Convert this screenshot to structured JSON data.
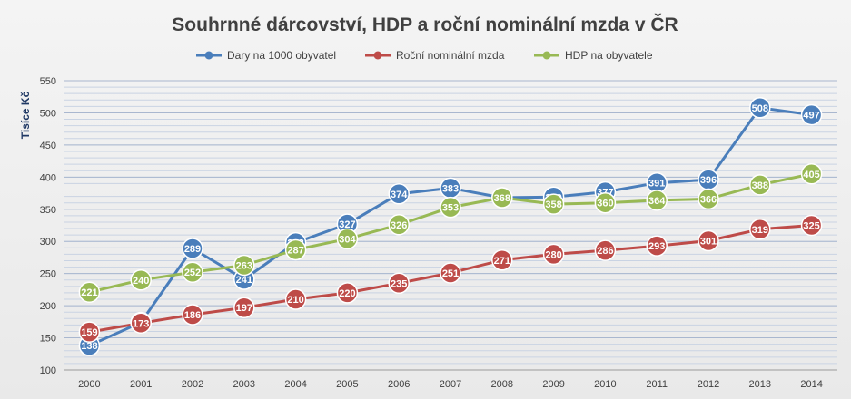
{
  "chart_data": {
    "type": "line",
    "title": "Souhrnné dárcovství, HDP a roční nominální mzda v ČR",
    "xlabel": "",
    "ylabel": "Tisíce Kč",
    "ylim": [
      100,
      550
    ],
    "yticks": [
      100,
      150,
      200,
      250,
      300,
      350,
      400,
      450,
      500,
      550
    ],
    "grid": true,
    "legend_position": "top",
    "categories": [
      "2000",
      "2001",
      "2002",
      "2003",
      "2004",
      "2005",
      "2006",
      "2007",
      "2008",
      "2009",
      "2010",
      "2011",
      "2012",
      "2013",
      "2014"
    ],
    "series": [
      {
        "name": "Dary na 1000 obyvatel",
        "color": "#4a7ebb",
        "values": [
          138,
          174,
          289,
          241,
          298,
          327,
          374,
          383,
          368,
          369,
          377,
          391,
          396,
          508,
          497
        ]
      },
      {
        "name": "Roční nominální mzda",
        "color": "#be4b48",
        "values": [
          159,
          173,
          186,
          197,
          210,
          220,
          235,
          251,
          271,
          280,
          286,
          293,
          301,
          319,
          325
        ]
      },
      {
        "name": "HDP na obyvatele",
        "color": "#98b954",
        "values": [
          221,
          240,
          252,
          263,
          287,
          304,
          326,
          353,
          368,
          358,
          360,
          364,
          366,
          388,
          405
        ]
      }
    ]
  }
}
